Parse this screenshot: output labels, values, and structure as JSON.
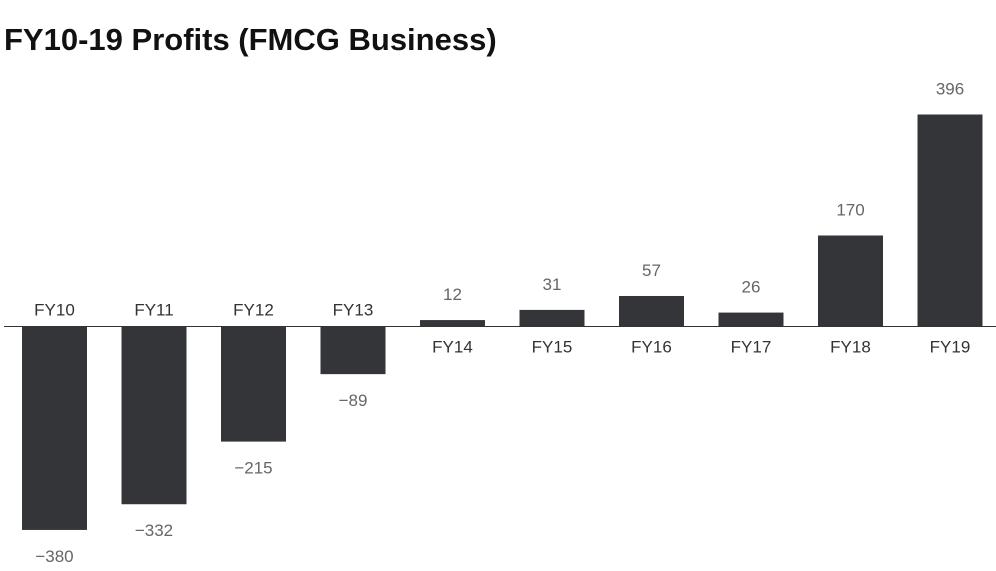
{
  "chart_data": {
    "type": "bar",
    "title": "FY10-19 Profits (FMCG Business)",
    "xlabel": "",
    "ylabel": "",
    "categories": [
      "FY10",
      "FY11",
      "FY12",
      "FY13",
      "FY14",
      "FY15",
      "FY16",
      "FY17",
      "FY18",
      "FY19"
    ],
    "values": [
      -380,
      -332,
      -215,
      -89,
      12,
      31,
      57,
      26,
      170,
      396
    ],
    "value_labels": [
      "−380",
      "−332",
      "−215",
      "−89",
      "12",
      "31",
      "57",
      "26",
      "170",
      "396"
    ],
    "ylim": [
      -380,
      396
    ],
    "grid": false,
    "legend": "none",
    "colors": {
      "bar": "#333538",
      "baseline": "#333333",
      "category_label": "#333333",
      "value_label": "#666666",
      "title": "#111111"
    }
  }
}
